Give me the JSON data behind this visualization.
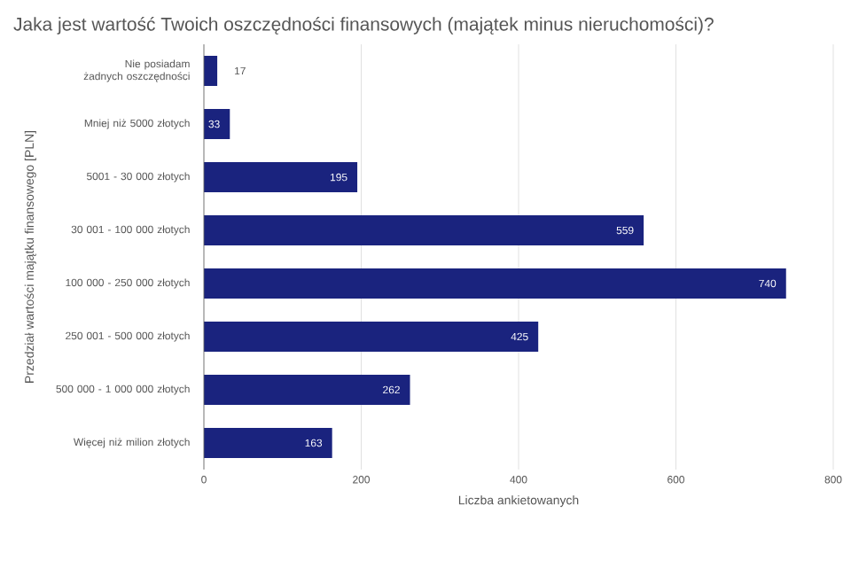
{
  "chart_data": {
    "type": "bar",
    "orientation": "horizontal",
    "title": "Jaka jest wartość Twoich oszczędności finansowych (majątek minus nieruchomości)?",
    "xlabel": "Liczba ankietowanych",
    "ylabel": "Przedział wartości majątku finansowego [PLN]",
    "categories": [
      "Nie posiadam żadnych oszczędności",
      "Mniej niż 5000 złotych",
      "5001 - 30 000 złotych",
      "30 001 - 100 000 złotych",
      "100 000 - 250 000 złotych",
      "250 001 - 500 000 złotych",
      "500 000 - 1 000 000 złotych",
      "Więcej niż milion złotych"
    ],
    "values": [
      17,
      33,
      195,
      559,
      740,
      425,
      262,
      163
    ],
    "color": "#1a237e",
    "xlim": [
      0,
      800
    ],
    "xticks": [
      0,
      200,
      400,
      600,
      800
    ],
    "grid": "x",
    "data_labels": true
  }
}
